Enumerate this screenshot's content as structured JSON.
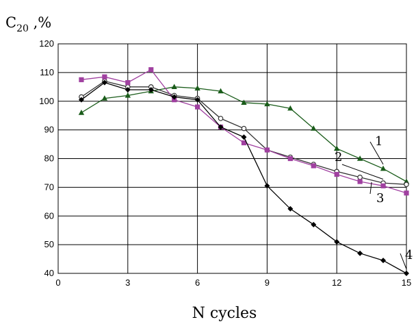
{
  "chart_data": {
    "type": "line",
    "ylabel": {
      "main": "C",
      "sub": "20",
      "suffix": " ,%"
    },
    "xlabel": "N cycles",
    "xlim": [
      0,
      15
    ],
    "ylim": [
      40,
      120
    ],
    "xticks": [
      "0",
      "3",
      "6",
      "9",
      "12",
      "15"
    ],
    "yticks": [
      "40",
      "50",
      "60",
      "70",
      "80",
      "90",
      "100",
      "110",
      "120"
    ],
    "grid": true,
    "series": [
      {
        "name": "1",
        "marker": "triangle",
        "color": "#1a5c1a",
        "x": [
          1,
          2,
          3,
          4,
          5,
          6,
          7,
          8,
          9,
          10,
          11,
          12,
          13,
          14,
          15
        ],
        "y": [
          96,
          101,
          102,
          103.5,
          105,
          104.5,
          103.5,
          99.5,
          99,
          97.5,
          90.5,
          83.5,
          80,
          76.5,
          72
        ]
      },
      {
        "name": "2",
        "marker": "circle-open",
        "color": "#333333",
        "x": [
          1,
          2,
          3,
          4,
          5,
          6,
          7,
          8,
          9,
          10,
          11,
          12,
          13,
          14,
          15
        ],
        "y": [
          101.5,
          107,
          105,
          105,
          102,
          101,
          94,
          90.5,
          83,
          80.5,
          78,
          75.5,
          73.5,
          71.5,
          71
        ]
      },
      {
        "name": "3",
        "marker": "square",
        "color": "#a040a0",
        "x": [
          1,
          2,
          3,
          4,
          5,
          6,
          7,
          8,
          9,
          10,
          11,
          12,
          13,
          14,
          15
        ],
        "y": [
          107.5,
          108.5,
          106.5,
          111,
          100.5,
          98,
          91,
          85.5,
          83,
          80,
          77.5,
          74.5,
          72,
          70.5,
          68
        ]
      },
      {
        "name": "4",
        "marker": "diamond",
        "color": "#000000",
        "x": [
          1,
          2,
          3,
          4,
          5,
          6,
          7,
          8,
          9,
          10,
          11,
          12,
          13,
          14,
          15
        ],
        "y": [
          100.5,
          106.5,
          104,
          104,
          101.5,
          100.5,
          91,
          87.5,
          70.5,
          62.5,
          57,
          51,
          47,
          44.5,
          40
        ]
      }
    ],
    "curve_labels": [
      "1",
      "2",
      "3",
      "4"
    ]
  }
}
